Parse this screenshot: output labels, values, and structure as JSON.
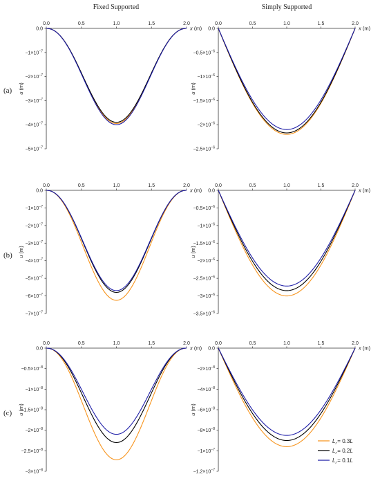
{
  "column_titles": [
    "Fixed Supported",
    "Simply Supported"
  ],
  "row_labels": [
    "(a)",
    "(b)",
    "(c)"
  ],
  "legend": {
    "placement": "bottom-right",
    "entries": [
      {
        "label": "= 0.3",
        "symbol": "L",
        "subscript": "r",
        "suffix": "L",
        "color": "#f7941d"
      },
      {
        "label": "= 0.2",
        "symbol": "L",
        "subscript": "r",
        "suffix": "L",
        "color": "#000000"
      },
      {
        "label": "= 0.1",
        "symbol": "L",
        "subscript": "r",
        "suffix": "L",
        "color": "#1f1fa8"
      }
    ]
  },
  "colors": {
    "Lr_0.3L": "#f7941d",
    "Lr_0.2L": "#000000",
    "Lr_0.1L": "#1f1fa8"
  },
  "chart_data": [
    {
      "type": "line",
      "panel": "(a) Fixed Supported",
      "support": "fixed",
      "xlabel": "x (m)",
      "ylabel": "u (m)",
      "xlim": [
        0,
        2.0
      ],
      "ylim": [
        -5e-07,
        0
      ],
      "xticks": [
        "0.0",
        "0.5",
        "1.0",
        "1.5",
        "2.0"
      ],
      "yticks": [
        {
          "value": 0,
          "mant": "0.0",
          "exp": ""
        },
        {
          "value": -1e-07,
          "mant": "−1×10",
          "exp": "−7"
        },
        {
          "value": -2e-07,
          "mant": "−2×10",
          "exp": "−7"
        },
        {
          "value": -3e-07,
          "mant": "−3×10",
          "exp": "−7"
        },
        {
          "value": -4e-07,
          "mant": "−4×10",
          "exp": "−7"
        },
        {
          "value": -5e-07,
          "mant": "−5×10",
          "exp": "−7"
        }
      ],
      "series": [
        {
          "name": "Lr = 0.3L",
          "min_value": -3.95e-07,
          "color": "#f7941d"
        },
        {
          "name": "Lr = 0.2L",
          "min_value": -3.9e-07,
          "color": "#000000"
        },
        {
          "name": "Lr = 0.1L",
          "min_value": -4e-07,
          "color": "#1f1fa8"
        }
      ]
    },
    {
      "type": "line",
      "panel": "(a) Simply Supported",
      "support": "simple",
      "xlabel": "x (m)",
      "ylabel": "u (m)",
      "xlim": [
        0,
        2.0
      ],
      "ylim": [
        -2.5e-06,
        0
      ],
      "xticks": [
        "0.0",
        "0.5",
        "1.0",
        "1.5",
        "2.0"
      ],
      "yticks": [
        {
          "value": 0,
          "mant": "0.0",
          "exp": ""
        },
        {
          "value": -5e-07,
          "mant": "−0.5×10",
          "exp": "−6"
        },
        {
          "value": -1e-06,
          "mant": "−1×10",
          "exp": "−6"
        },
        {
          "value": -1.5e-06,
          "mant": "−1.5×10",
          "exp": "−6"
        },
        {
          "value": -2e-06,
          "mant": "−2×10",
          "exp": "−6"
        },
        {
          "value": -2.5e-06,
          "mant": "−2.5×10",
          "exp": "−6"
        }
      ],
      "series": [
        {
          "name": "Lr = 0.3L",
          "min_value": -2.2e-06,
          "color": "#f7941d"
        },
        {
          "name": "Lr = 0.2L",
          "min_value": -2.17e-06,
          "color": "#000000"
        },
        {
          "name": "Lr = 0.1L",
          "min_value": -2.1e-06,
          "color": "#1f1fa8"
        }
      ]
    },
    {
      "type": "line",
      "panel": "(b) Fixed Supported",
      "support": "fixed",
      "xlabel": "x (m)",
      "ylabel": "u (m)",
      "xlim": [
        0,
        2.0
      ],
      "ylim": [
        -7e-07,
        0
      ],
      "xticks": [
        "0.0",
        "0.5",
        "1.0",
        "1.5",
        "2.0"
      ],
      "yticks": [
        {
          "value": 0,
          "mant": "0.0",
          "exp": ""
        },
        {
          "value": -1e-07,
          "mant": "−1×10",
          "exp": "−7"
        },
        {
          "value": -2e-07,
          "mant": "−2×10",
          "exp": "−7"
        },
        {
          "value": -3e-07,
          "mant": "−3×10",
          "exp": "−7"
        },
        {
          "value": -4e-07,
          "mant": "−4×10",
          "exp": "−7"
        },
        {
          "value": -5e-07,
          "mant": "−5×10",
          "exp": "−7"
        },
        {
          "value": -6e-07,
          "mant": "−6×10",
          "exp": "−7"
        },
        {
          "value": -7e-07,
          "mant": "−7×10",
          "exp": "−7"
        }
      ],
      "series": [
        {
          "name": "Lr = 0.3L",
          "min_value": -6.25e-07,
          "color": "#f7941d"
        },
        {
          "name": "Lr = 0.2L",
          "min_value": -5.8e-07,
          "color": "#000000"
        },
        {
          "name": "Lr = 0.1L",
          "min_value": -5.7e-07,
          "color": "#1f1fa8"
        }
      ]
    },
    {
      "type": "line",
      "panel": "(b) Simply Supported",
      "support": "simple",
      "xlabel": "x (m)",
      "ylabel": "u (m)",
      "xlim": [
        0,
        2.0
      ],
      "ylim": [
        -3.5e-06,
        0
      ],
      "xticks": [
        "0.0",
        "0.5",
        "1.0",
        "1.5",
        "2.0"
      ],
      "yticks": [
        {
          "value": 0,
          "mant": "0.0",
          "exp": ""
        },
        {
          "value": -5e-07,
          "mant": "−0.5×10",
          "exp": "−6"
        },
        {
          "value": -1e-06,
          "mant": "−1×10",
          "exp": "−6"
        },
        {
          "value": -1.5e-06,
          "mant": "−1.5×10",
          "exp": "−6"
        },
        {
          "value": -2e-06,
          "mant": "−2×10",
          "exp": "−6"
        },
        {
          "value": -2.5e-06,
          "mant": "−2.5×10",
          "exp": "−6"
        },
        {
          "value": -3e-06,
          "mant": "−3×10",
          "exp": "−6"
        },
        {
          "value": -3.5e-06,
          "mant": "−3.5×10",
          "exp": "−6"
        }
      ],
      "series": [
        {
          "name": "Lr = 0.3L",
          "min_value": -3e-06,
          "color": "#f7941d"
        },
        {
          "name": "Lr = 0.2L",
          "min_value": -2.85e-06,
          "color": "#000000"
        },
        {
          "name": "Lr = 0.1L",
          "min_value": -2.72e-06,
          "color": "#1f1fa8"
        }
      ]
    },
    {
      "type": "line",
      "panel": "(c) Fixed Supported",
      "support": "fixed",
      "xlabel": "x (m)",
      "ylabel": "u (m)",
      "xlim": [
        0,
        2.0
      ],
      "ylim": [
        -3e-08,
        0
      ],
      "xticks": [
        "0.0",
        "0.5",
        "1.0",
        "1.5",
        "2.0"
      ],
      "yticks": [
        {
          "value": 0,
          "mant": "0.0",
          "exp": ""
        },
        {
          "value": -5e-09,
          "mant": "−0.5×10",
          "exp": "−8"
        },
        {
          "value": -1e-08,
          "mant": "−1×10",
          "exp": "−8"
        },
        {
          "value": -1.5e-08,
          "mant": "−1.5×10",
          "exp": "−8"
        },
        {
          "value": -2e-08,
          "mant": "−2×10",
          "exp": "−8"
        },
        {
          "value": -2.5e-08,
          "mant": "−2.5×10",
          "exp": "−8"
        },
        {
          "value": -3e-08,
          "mant": "−3×10",
          "exp": "−8"
        }
      ],
      "series": [
        {
          "name": "Lr = 0.3L",
          "min_value": -2.72e-08,
          "color": "#f7941d"
        },
        {
          "name": "Lr = 0.2L",
          "min_value": -2.3e-08,
          "color": "#000000"
        },
        {
          "name": "Lr = 0.1L",
          "min_value": -2.1e-08,
          "color": "#1f1fa8"
        }
      ]
    },
    {
      "type": "line",
      "panel": "(c) Simply Supported",
      "support": "simple",
      "xlabel": "x (m)",
      "ylabel": "u (m)",
      "xlim": [
        0,
        2.0
      ],
      "ylim": [
        -1.2e-07,
        0
      ],
      "xticks": [
        "0.0",
        "0.5",
        "1.0",
        "1.5",
        "2.0"
      ],
      "yticks": [
        {
          "value": 0,
          "mant": "0.0",
          "exp": ""
        },
        {
          "value": -2e-08,
          "mant": "−2×10",
          "exp": "−8"
        },
        {
          "value": -4e-08,
          "mant": "−4×10",
          "exp": "−8"
        },
        {
          "value": -6e-08,
          "mant": "−6×10",
          "exp": "−8"
        },
        {
          "value": -8e-08,
          "mant": "−8×10",
          "exp": "−8"
        },
        {
          "value": -1e-07,
          "mant": "−1×10",
          "exp": "−7"
        },
        {
          "value": -1.2e-07,
          "mant": "−1.2×10",
          "exp": "−7"
        }
      ],
      "series": [
        {
          "name": "Lr = 0.3L",
          "min_value": -9.6e-08,
          "color": "#f7941d"
        },
        {
          "name": "Lr = 0.2L",
          "min_value": -9e-08,
          "color": "#000000"
        },
        {
          "name": "Lr = 0.1L",
          "min_value": -8.5e-08,
          "color": "#1f1fa8"
        }
      ]
    }
  ]
}
